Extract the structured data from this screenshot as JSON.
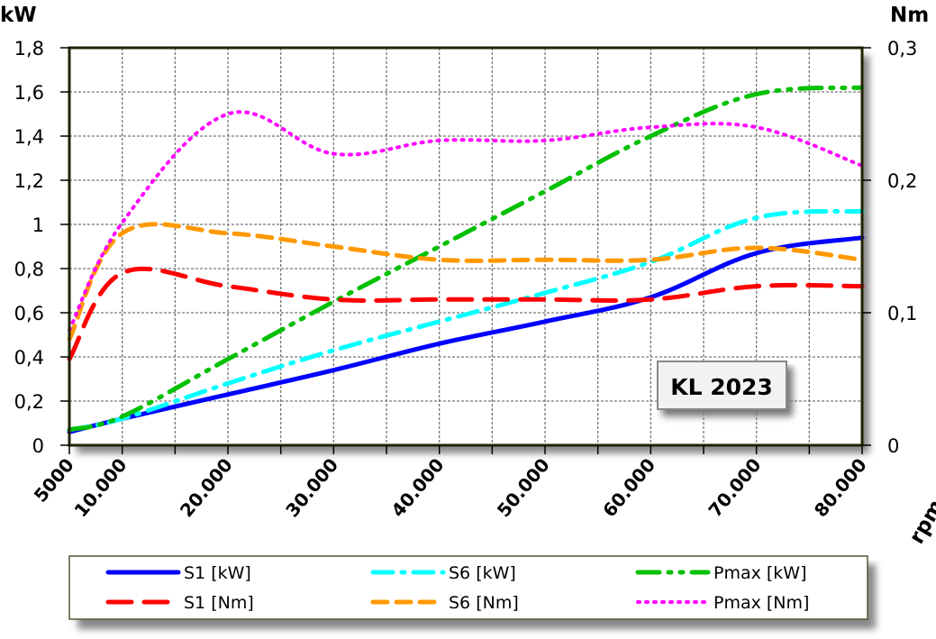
{
  "chart_data": {
    "type": "line",
    "title": "",
    "annotation": "KL 2023",
    "xlabel": "rpm",
    "ylabel_left": "kW",
    "ylabel_right": "Nm",
    "xlim": [
      5000,
      80000
    ],
    "ylim_left": [
      0,
      1.8
    ],
    "ylim_right": [
      0,
      0.3
    ],
    "grid": true,
    "legend_position": "bottom",
    "x_tick_labels": [
      "5000",
      "10.000",
      "20.000",
      "30.000",
      "40.000",
      "50.000",
      "60.000",
      "70.000",
      "80.000"
    ],
    "x_tick_values": [
      5000,
      10000,
      20000,
      30000,
      40000,
      50000,
      60000,
      70000,
      80000
    ],
    "y_left_tick_labels": [
      "0",
      "0,2",
      "0,4",
      "0,6",
      "0,8",
      "1",
      "1,2",
      "1,4",
      "1,6",
      "1,8"
    ],
    "y_left_tick_values": [
      0,
      0.2,
      0.4,
      0.6,
      0.8,
      1.0,
      1.2,
      1.4,
      1.6,
      1.8
    ],
    "y_right_tick_labels": [
      "0",
      "0,1",
      "0,2",
      "0,3"
    ],
    "y_right_tick_values": [
      0,
      0.1,
      0.2,
      0.3
    ],
    "x": [
      5000,
      10000,
      20000,
      30000,
      40000,
      50000,
      60000,
      70000,
      80000
    ],
    "series": [
      {
        "name": "S1 [kW]",
        "axis": "left",
        "color": "#0000ff",
        "dash": "solid",
        "values": [
          0.06,
          0.12,
          0.23,
          0.34,
          0.46,
          0.56,
          0.67,
          0.87,
          0.94
        ]
      },
      {
        "name": "S6 [kW]",
        "axis": "left",
        "color": "#00ffff",
        "dash": "dash-dot",
        "values": [
          0.07,
          0.12,
          0.28,
          0.43,
          0.56,
          0.69,
          0.83,
          1.03,
          1.06
        ]
      },
      {
        "name": "Pmax [kW]",
        "axis": "left",
        "color": "#00c000",
        "dash": "dash-dot-dot",
        "values": [
          0.07,
          0.13,
          0.39,
          0.65,
          0.9,
          1.15,
          1.4,
          1.59,
          1.62
        ]
      },
      {
        "name": "S1 [Nm]",
        "axis": "right",
        "color": "#ff0000",
        "dash": "long-dash",
        "values": [
          0.065,
          0.13,
          0.12,
          0.11,
          0.11,
          0.11,
          0.11,
          0.12,
          0.12
        ]
      },
      {
        "name": "S6 [Nm]",
        "axis": "right",
        "color": "#ff9900",
        "dash": "dash",
        "values": [
          0.08,
          0.16,
          0.16,
          0.15,
          0.14,
          0.14,
          0.14,
          0.149,
          0.14
        ]
      },
      {
        "name": "Pmax [Nm]",
        "axis": "right",
        "color": "#ff00ff",
        "dash": "dot",
        "values": [
          0.087,
          0.168,
          0.25,
          0.22,
          0.23,
          0.23,
          0.24,
          0.24,
          0.211
        ]
      }
    ]
  }
}
